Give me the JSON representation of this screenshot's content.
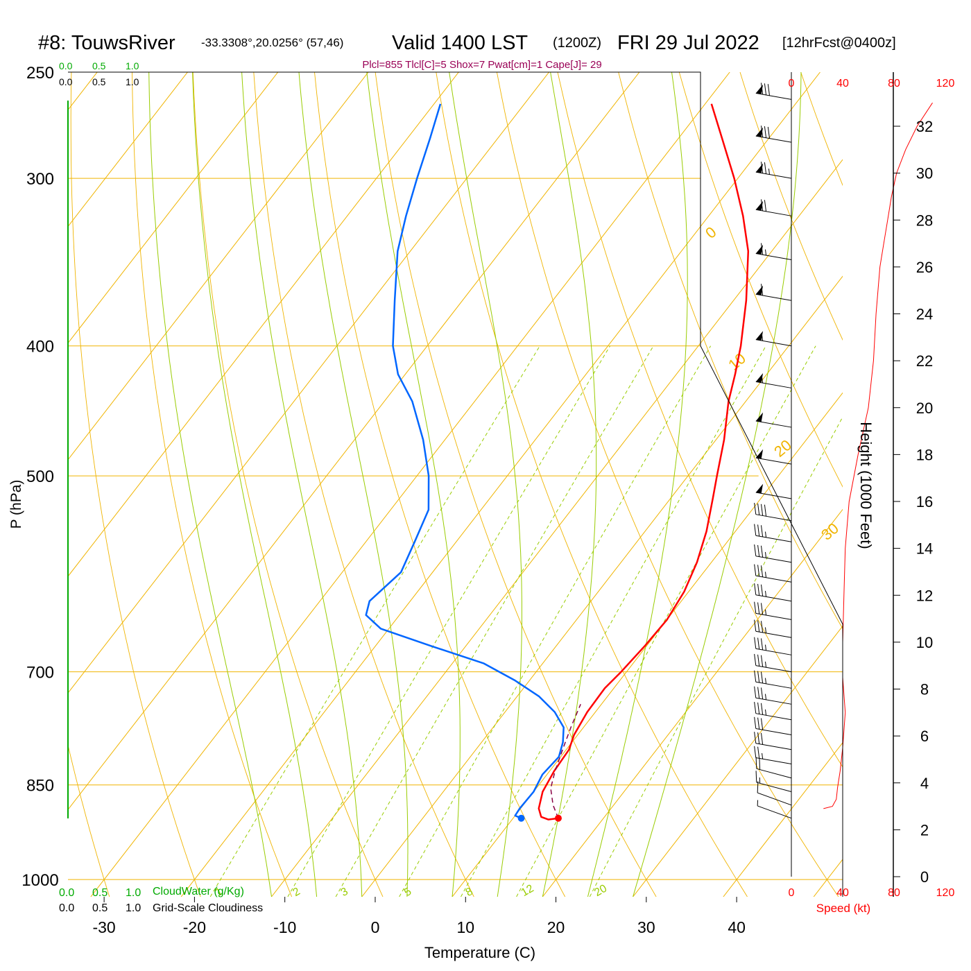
{
  "header": {
    "station": "#8: TouwsRiver",
    "coords": "-33.3308°,20.0256° (57,46)",
    "valid": "Valid 1400 LST",
    "zulu": "(1200Z)",
    "date": "FRI 29 Jul 2022",
    "forecast": "[12hrFcst@0400z]"
  },
  "indices": "Plcl=855 Tlcl[C]=5 Shox=7 Pwat[cm]=1 Cape[J]= 29",
  "cloud_scale": {
    "top_green": [
      "0.0",
      "0.5",
      "1.0"
    ],
    "top_black": [
      "0.0",
      "0.5",
      "1.0"
    ],
    "bottom_green": [
      "0.0",
      "0.5",
      "1.0"
    ],
    "bottom_black": [
      "0.0",
      "0.5",
      "1.0"
    ],
    "cloudwater_label": "CloudWater (g/Kg)",
    "cloudiness_label": "Grid-Scale Cloudiness"
  },
  "colors": {
    "temperature": "#ff0000",
    "dewpoint": "#0066ff",
    "parcel": "#880044",
    "isotherm": "#f0b400",
    "dry_adiabat": "#f0b400",
    "moist_adiabat": "#99cc00",
    "mixing_ratio": "#99cc00",
    "cloud_axis": "#00aa00",
    "speed": "#ff0000",
    "indices": "#990055"
  },
  "chart_data": {
    "type": "line",
    "xlabel": "Temperature (C)",
    "ylabel": "P (hPa)",
    "x_ticks": [
      -30,
      -20,
      -10,
      0,
      10,
      20,
      30,
      40
    ],
    "pressure_ticks": [
      250,
      300,
      400,
      500,
      700,
      850,
      1000
    ],
    "xlim": [
      -34,
      36
    ],
    "plim": [
      250,
      1030
    ],
    "skew_deg_per_log10p": 115,
    "temperature_profile": [
      {
        "p": 900,
        "t": 15.0
      },
      {
        "p": 902,
        "t": 14.0
      },
      {
        "p": 898,
        "t": 13.0
      },
      {
        "p": 885,
        "t": 12.0
      },
      {
        "p": 860,
        "t": 11.0
      },
      {
        "p": 830,
        "t": 10.5
      },
      {
        "p": 800,
        "t": 10.3
      },
      {
        "p": 780,
        "t": 9.6
      },
      {
        "p": 750,
        "t": 9.1
      },
      {
        "p": 720,
        "t": 9.0
      },
      {
        "p": 700,
        "t": 9.4
      },
      {
        "p": 670,
        "t": 9.8
      },
      {
        "p": 640,
        "t": 10.0
      },
      {
        "p": 610,
        "t": 9.5
      },
      {
        "p": 580,
        "t": 8.4
      },
      {
        "p": 550,
        "t": 6.8
      },
      {
        "p": 520,
        "t": 4.7
      },
      {
        "p": 500,
        "t": 3.2
      },
      {
        "p": 470,
        "t": 0.9
      },
      {
        "p": 440,
        "t": -1.9
      },
      {
        "p": 420,
        "t": -3.5
      },
      {
        "p": 400,
        "t": -5.3
      },
      {
        "p": 370,
        "t": -8.6
      },
      {
        "p": 340,
        "t": -12.6
      },
      {
        "p": 320,
        "t": -16.2
      },
      {
        "p": 300,
        "t": -20.4
      },
      {
        "p": 280,
        "t": -25.2
      },
      {
        "p": 264,
        "t": -29.3
      }
    ],
    "dewpoint_profile": [
      {
        "p": 900,
        "t": 10.9
      },
      {
        "p": 896,
        "t": 10.0
      },
      {
        "p": 885,
        "t": 9.9
      },
      {
        "p": 860,
        "t": 10.0
      },
      {
        "p": 835,
        "t": 9.5
      },
      {
        "p": 810,
        "t": 9.8
      },
      {
        "p": 790,
        "t": 9.0
      },
      {
        "p": 770,
        "t": 7.8
      },
      {
        "p": 750,
        "t": 5.5
      },
      {
        "p": 730,
        "t": 2.4
      },
      {
        "p": 710,
        "t": -1.7
      },
      {
        "p": 690,
        "t": -6.5
      },
      {
        "p": 670,
        "t": -13.7
      },
      {
        "p": 650,
        "t": -20.9
      },
      {
        "p": 635,
        "t": -23.7
      },
      {
        "p": 620,
        "t": -24.5
      },
      {
        "p": 590,
        "t": -23.5
      },
      {
        "p": 560,
        "t": -24.6
      },
      {
        "p": 530,
        "t": -25.8
      },
      {
        "p": 500,
        "t": -28.7
      },
      {
        "p": 470,
        "t": -32.4
      },
      {
        "p": 440,
        "t": -36.9
      },
      {
        "p": 420,
        "t": -40.8
      },
      {
        "p": 400,
        "t": -43.8
      },
      {
        "p": 370,
        "t": -47.5
      },
      {
        "p": 340,
        "t": -51.4
      },
      {
        "p": 320,
        "t": -53.5
      },
      {
        "p": 300,
        "t": -55.5
      },
      {
        "p": 280,
        "t": -57.5
      },
      {
        "p": 264,
        "t": -59.3
      }
    ],
    "parcel_profile": [
      {
        "p": 900,
        "t": 15.0
      },
      {
        "p": 880,
        "t": 13.3
      },
      {
        "p": 855,
        "t": 11.6
      },
      {
        "p": 830,
        "t": 10.6
      },
      {
        "p": 800,
        "t": 9.6
      },
      {
        "p": 770,
        "t": 8.6
      },
      {
        "p": 740,
        "t": 7.7
      }
    ],
    "surface": {
      "p": 900,
      "t": 15.0,
      "td": 10.9
    },
    "isotherm_labels": [
      -30,
      -20,
      -10,
      0,
      10,
      20,
      30
    ],
    "moist_adiabats_c": [
      -10,
      -5,
      0,
      5,
      10,
      15,
      20,
      25,
      30
    ],
    "mixing_ratios_gkg": [
      1,
      2,
      3,
      5,
      8,
      12,
      20
    ],
    "wind_profile": [
      {
        "p": 900,
        "dir": 290,
        "spd": 5
      },
      {
        "p": 880,
        "dir": 290,
        "spd": 10
      },
      {
        "p": 860,
        "dir": 285,
        "spd": 15
      },
      {
        "p": 840,
        "dir": 285,
        "spd": 20
      },
      {
        "p": 820,
        "dir": 280,
        "spd": 25
      },
      {
        "p": 800,
        "dir": 280,
        "spd": 30
      },
      {
        "p": 780,
        "dir": 280,
        "spd": 30
      },
      {
        "p": 760,
        "dir": 280,
        "spd": 35
      },
      {
        "p": 740,
        "dir": 280,
        "spd": 35
      },
      {
        "p": 720,
        "dir": 280,
        "spd": 35
      },
      {
        "p": 700,
        "dir": 280,
        "spd": 35
      },
      {
        "p": 680,
        "dir": 280,
        "spd": 35
      },
      {
        "p": 660,
        "dir": 280,
        "spd": 35
      },
      {
        "p": 640,
        "dir": 280,
        "spd": 35
      },
      {
        "p": 620,
        "dir": 280,
        "spd": 35
      },
      {
        "p": 600,
        "dir": 280,
        "spd": 35
      },
      {
        "p": 580,
        "dir": 280,
        "spd": 35
      },
      {
        "p": 560,
        "dir": 280,
        "spd": 35
      },
      {
        "p": 540,
        "dir": 280,
        "spd": 40
      },
      {
        "p": 520,
        "dir": 280,
        "spd": 50
      },
      {
        "p": 490,
        "dir": 280,
        "spd": 50
      },
      {
        "p": 460,
        "dir": 280,
        "spd": 50
      },
      {
        "p": 430,
        "dir": 280,
        "spd": 55
      },
      {
        "p": 400,
        "dir": 280,
        "spd": 55
      },
      {
        "p": 370,
        "dir": 280,
        "spd": 60
      },
      {
        "p": 345,
        "dir": 280,
        "spd": 65
      },
      {
        "p": 320,
        "dir": 280,
        "spd": 70
      },
      {
        "p": 300,
        "dir": 280,
        "spd": 75
      },
      {
        "p": 282,
        "dir": 280,
        "spd": 80
      },
      {
        "p": 262,
        "dir": 280,
        "spd": 80
      }
    ],
    "height_axis": {
      "label": "Height (1000 Feet)",
      "ticks": [
        0,
        2,
        4,
        6,
        8,
        10,
        12,
        14,
        16,
        18,
        20,
        22,
        24,
        26,
        28,
        30,
        32
      ]
    },
    "speed_axis": {
      "label": "Speed (kt)",
      "ticks": [
        0,
        40,
        80,
        120
      ]
    },
    "speed_profile": [
      {
        "h": 2.9,
        "spd": 25
      },
      {
        "h": 3.0,
        "spd": 32
      },
      {
        "h": 3.3,
        "spd": 35
      },
      {
        "h": 3.8,
        "spd": 36
      },
      {
        "h": 4.5,
        "spd": 38
      },
      {
        "h": 5.5,
        "spd": 40
      },
      {
        "h": 7.0,
        "spd": 42
      },
      {
        "h": 8.5,
        "spd": 40
      },
      {
        "h": 9.0,
        "spd": 40
      },
      {
        "h": 10.0,
        "spd": 40
      },
      {
        "h": 12.0,
        "spd": 41
      },
      {
        "h": 14.0,
        "spd": 42
      },
      {
        "h": 16.0,
        "spd": 45
      },
      {
        "h": 18.0,
        "spd": 52
      },
      {
        "h": 20.0,
        "spd": 60
      },
      {
        "h": 22.0,
        "spd": 64
      },
      {
        "h": 24.0,
        "spd": 66
      },
      {
        "h": 26.0,
        "spd": 69
      },
      {
        "h": 27.0,
        "spd": 72
      },
      {
        "h": 28.0,
        "spd": 75
      },
      {
        "h": 29.0,
        "spd": 78
      },
      {
        "h": 30.0,
        "spd": 82
      },
      {
        "h": 31.0,
        "spd": 89
      },
      {
        "h": 32.0,
        "spd": 98
      },
      {
        "h": 33.0,
        "spd": 110
      }
    ]
  }
}
